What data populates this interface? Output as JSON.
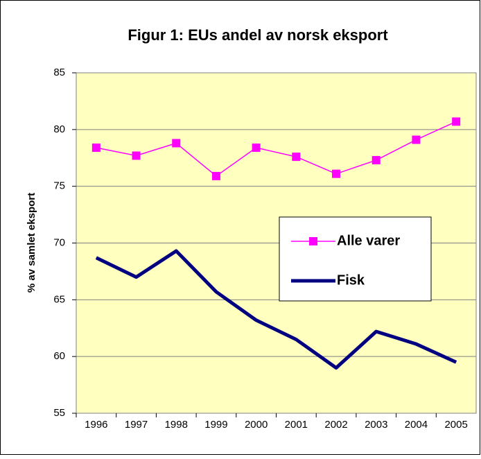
{
  "chart_data": {
    "type": "line",
    "title": "Figur 1: EUs andel av norsk eksport",
    "y_label": "% av samlet eksport",
    "categories": [
      "1996",
      "1997",
      "1998",
      "1999",
      "2000",
      "2001",
      "2002",
      "2003",
      "2004",
      "2005"
    ],
    "series": [
      {
        "name": "Alle varer",
        "color": "#ff00ff",
        "values": [
          78.4,
          77.7,
          78.8,
          75.9,
          78.4,
          77.6,
          76.1,
          77.3,
          79.1,
          80.7
        ]
      },
      {
        "name": "Fisk",
        "color": "#000080",
        "values": [
          68.7,
          67.0,
          69.3,
          65.7,
          63.2,
          61.5,
          59.0,
          62.2,
          61.1,
          59.5
        ]
      }
    ],
    "ylim": [
      55,
      85
    ],
    "yticks": [
      55,
      60,
      65,
      70,
      75,
      80,
      85
    ],
    "grid": true
  }
}
